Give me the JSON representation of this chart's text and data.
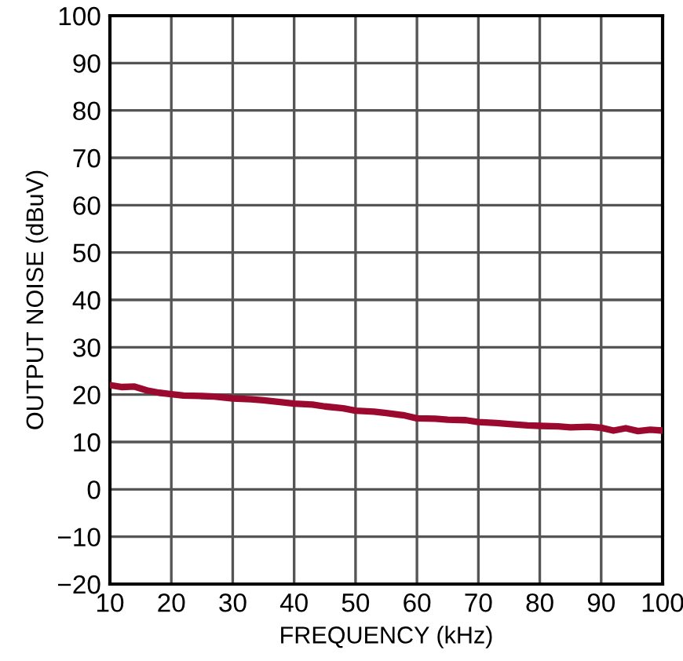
{
  "chart_data": {
    "type": "line",
    "xlabel": "FREQUENCY (kHz)",
    "ylabel": "OUTPUT NOISE (dBuV)",
    "series": [
      {
        "color": "#9b0a2e",
        "x": [
          10,
          12,
          14,
          16,
          18,
          20,
          22,
          25,
          27,
          30,
          33,
          35,
          38,
          40,
          43,
          45,
          48,
          50,
          53,
          55,
          58,
          60,
          63,
          65,
          68,
          70,
          73,
          75,
          78,
          80,
          83,
          85,
          88,
          90,
          92,
          94,
          96,
          98,
          100
        ],
        "values": [
          22.0,
          21.6,
          21.7,
          20.9,
          20.4,
          20.1,
          19.8,
          19.7,
          19.6,
          19.2,
          19.0,
          18.8,
          18.4,
          18.1,
          17.9,
          17.5,
          17.1,
          16.6,
          16.4,
          16.1,
          15.6,
          15.0,
          14.9,
          14.7,
          14.6,
          14.2,
          14.0,
          13.8,
          13.5,
          13.4,
          13.3,
          13.1,
          13.2,
          13.0,
          12.4,
          12.9,
          12.3,
          12.6,
          12.4
        ]
      }
    ],
    "xlim": [
      10,
      100
    ],
    "xticks": [
      10,
      20,
      30,
      40,
      50,
      60,
      70,
      80,
      90,
      100
    ],
    "ylim": [
      -20,
      100
    ],
    "yticks": [
      {
        "value": -20,
        "label": "−20"
      },
      {
        "value": -10,
        "label": "−10"
      },
      0,
      10,
      20,
      30,
      40,
      50,
      60,
      70,
      80,
      90,
      100
    ],
    "grid": true,
    "line_style": "solid",
    "marker": "none"
  }
}
